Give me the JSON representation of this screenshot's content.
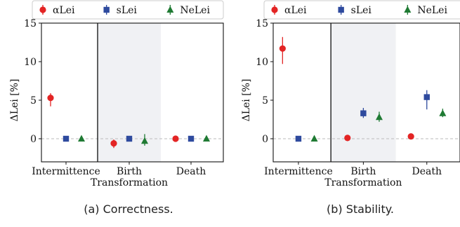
{
  "captions": [
    "(a) Correctness.",
    "(b) Stability."
  ],
  "colors": {
    "alphaLei": "#e32424",
    "sLei": "#2e4a9e",
    "NeLei": "#1f7a33",
    "band": "#f0f1f4",
    "zeroline": "#bbbbbb"
  },
  "chart_data": [
    {
      "type": "scatter",
      "title": "",
      "xlabel": "Transformation",
      "ylabel": "ΔLei [%]",
      "ylim": [
        -3,
        15
      ],
      "yticks": [
        0,
        5,
        10,
        15
      ],
      "categories": [
        "Intermittence",
        "Birth",
        "Death"
      ],
      "grid": false,
      "legend": "top",
      "shaded_category": "Birth",
      "separator_after": "Intermittence",
      "zero_line": true,
      "series": [
        {
          "name": "αLei",
          "marker": "circle",
          "color": "#e32424",
          "values": [
            5.3,
            -0.6,
            0.0
          ],
          "err_low": [
            1.1,
            0.6,
            0.15
          ],
          "err_high": [
            0.6,
            0.5,
            0.15
          ]
        },
        {
          "name": "sLei",
          "marker": "square",
          "color": "#2e4a9e",
          "values": [
            0.0,
            0.0,
            0.0
          ],
          "err_low": [
            0.1,
            0.1,
            0.1
          ],
          "err_high": [
            0.1,
            0.1,
            0.1
          ]
        },
        {
          "name": "NeLei",
          "marker": "triangle",
          "color": "#1f7a33",
          "values": [
            0.0,
            -0.3,
            0.0
          ],
          "err_low": [
            0.1,
            0.6,
            0.1
          ],
          "err_high": [
            0.1,
            0.9,
            0.1
          ]
        }
      ]
    },
    {
      "type": "scatter",
      "title": "",
      "xlabel": "Transformation",
      "ylabel": "ΔLei [%]",
      "ylim": [
        -3,
        15
      ],
      "yticks": [
        0,
        5,
        10,
        15
      ],
      "categories": [
        "Intermittence",
        "Birth",
        "Death"
      ],
      "grid": false,
      "legend": "top",
      "shaded_category": "Birth",
      "separator_after": "Intermittence",
      "zero_line": true,
      "series": [
        {
          "name": "αLei",
          "marker": "circle",
          "color": "#e32424",
          "values": [
            11.7,
            0.1,
            0.3
          ],
          "err_low": [
            2.0,
            0.4,
            0.2
          ],
          "err_high": [
            1.5,
            0.4,
            0.2
          ]
        },
        {
          "name": "sLei",
          "marker": "square",
          "color": "#2e4a9e",
          "values": [
            0.0,
            3.3,
            5.4
          ],
          "err_low": [
            0.1,
            0.6,
            1.6
          ],
          "err_high": [
            0.1,
            0.7,
            0.9
          ]
        },
        {
          "name": "NeLei",
          "marker": "triangle",
          "color": "#1f7a33",
          "values": [
            0.0,
            2.8,
            3.3
          ],
          "err_low": [
            0.1,
            0.6,
            0.5
          ],
          "err_high": [
            0.1,
            0.7,
            0.6
          ]
        }
      ]
    }
  ]
}
